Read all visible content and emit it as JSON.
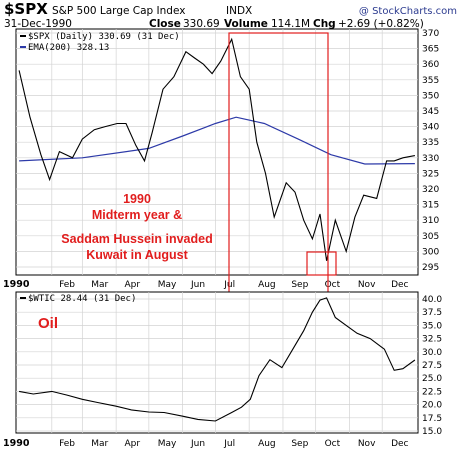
{
  "header": {
    "symbol": "$SPX",
    "name": "S&P 500 Large Cap Index",
    "exchange": "INDX",
    "date": "31-Dec-1990",
    "close_label": "Close",
    "close_value": "330.69",
    "volume_label": "Volume",
    "volume_value": "114.1M",
    "chg_label": "Chg",
    "chg_value": "+2.69 (+0.82%)",
    "brand": "@ StockCharts.com"
  },
  "legend": {
    "price": "$SPX (Daily) 330.69 (31 Dec)",
    "ema": "EMA(200) 328.13",
    "oil": "$WTIC 28.44 (31 Dec)"
  },
  "annotations": {
    "line1": "1990",
    "line2": "Midterm year &",
    "line3": "Saddam Hussein invaded",
    "line4": "Kuwait in August",
    "oil_label": "Oil"
  },
  "colors": {
    "price": "#000000",
    "ema": "#2d3aa8",
    "oil": "#000000",
    "highlight": "#e11d1d",
    "grid": "#d3d3d3"
  },
  "chart_data": [
    {
      "type": "line",
      "series": [
        {
          "name": "$SPX (Daily)",
          "x": [
            "1990-01-02",
            "1990-01-12",
            "1990-01-22",
            "1990-01-30",
            "1990-02-08",
            "1990-02-20",
            "1990-03-01",
            "1990-03-12",
            "1990-03-22",
            "1990-04-02",
            "1990-04-10",
            "1990-04-19",
            "1990-04-27",
            "1990-05-04",
            "1990-05-14",
            "1990-05-24",
            "1990-06-04",
            "1990-06-12",
            "1990-06-20",
            "1990-06-28",
            "1990-07-06",
            "1990-07-16",
            "1990-07-24",
            "1990-08-01",
            "1990-08-08",
            "1990-08-16",
            "1990-08-24",
            "1990-09-04",
            "1990-09-12",
            "1990-09-20",
            "1990-09-28",
            "1990-10-05",
            "1990-10-11",
            "1990-10-19",
            "1990-10-29",
            "1990-11-06",
            "1990-11-14",
            "1990-11-26",
            "1990-12-05",
            "1990-12-12",
            "1990-12-20",
            "1990-12-31"
          ],
          "values": [
            358,
            343,
            331,
            323,
            332,
            330,
            336,
            339,
            340,
            341,
            341,
            334,
            329,
            338,
            352,
            356,
            364,
            362,
            360,
            357,
            361,
            368,
            356,
            352,
            335,
            325,
            311,
            322,
            319,
            310,
            304,
            312,
            297,
            310,
            300,
            311,
            318,
            317,
            329,
            329,
            330,
            330.69
          ]
        },
        {
          "name": "EMA(200)",
          "x": [
            "1990-01-02",
            "1990-03-01",
            "1990-05-01",
            "1990-06-01",
            "1990-07-01",
            "1990-07-20",
            "1990-08-15",
            "1990-09-15",
            "1990-10-15",
            "1990-11-15",
            "1990-12-31"
          ],
          "values": [
            329,
            330,
            333,
            337,
            341,
            343,
            341,
            336,
            331,
            328,
            328.13
          ]
        }
      ],
      "y_axis": {
        "ticks": [
          295,
          300,
          305,
          310,
          315,
          320,
          325,
          330,
          335,
          340,
          345,
          350,
          355,
          360,
          365,
          370
        ],
        "position": "right"
      },
      "x_axis": {
        "labels": [
          "1990",
          "Feb",
          "Mar",
          "Apr",
          "May",
          "Jun",
          "Jul",
          "Aug",
          "Sep",
          "Oct",
          "Nov",
          "Dec"
        ]
      },
      "grid": true,
      "legend_position": "top-left"
    },
    {
      "type": "line",
      "series": [
        {
          "name": "$WTIC",
          "x": [
            "1990-01-02",
            "1990-01-15",
            "1990-02-01",
            "1990-02-15",
            "1990-03-01",
            "1990-03-15",
            "1990-04-01",
            "1990-04-15",
            "1990-05-01",
            "1990-05-15",
            "1990-06-01",
            "1990-06-15",
            "1990-07-01",
            "1990-07-16",
            "1990-07-25",
            "1990-08-02",
            "1990-08-10",
            "1990-08-20",
            "1990-08-31",
            "1990-09-10",
            "1990-09-20",
            "1990-09-28",
            "1990-10-05",
            "1990-10-11",
            "1990-10-19",
            "1990-10-29",
            "1990-11-08",
            "1990-11-20",
            "1990-12-03",
            "1990-12-12",
            "1990-12-20",
            "1990-12-31"
          ],
          "values": [
            22.5,
            22.0,
            22.5,
            21.8,
            21.0,
            20.4,
            19.7,
            19.0,
            18.6,
            18.5,
            17.8,
            17.2,
            16.9,
            18.5,
            19.5,
            21.0,
            25.5,
            28.5,
            27.0,
            30.5,
            34.0,
            37.5,
            39.8,
            40.2,
            36.5,
            35.0,
            33.5,
            32.5,
            30.5,
            26.5,
            26.8,
            28.44
          ]
        }
      ],
      "y_axis": {
        "ticks": [
          15.0,
          17.5,
          20.0,
          22.5,
          25.0,
          27.5,
          30.0,
          32.5,
          35.0,
          37.5,
          40.0
        ],
        "position": "right"
      },
      "x_axis": {
        "labels": [
          "1990",
          "Feb",
          "Mar",
          "Apr",
          "May",
          "Jun",
          "Jul",
          "Aug",
          "Sep",
          "Oct",
          "Nov",
          "Dec"
        ]
      },
      "grid": true,
      "legend_position": "top-left"
    }
  ]
}
